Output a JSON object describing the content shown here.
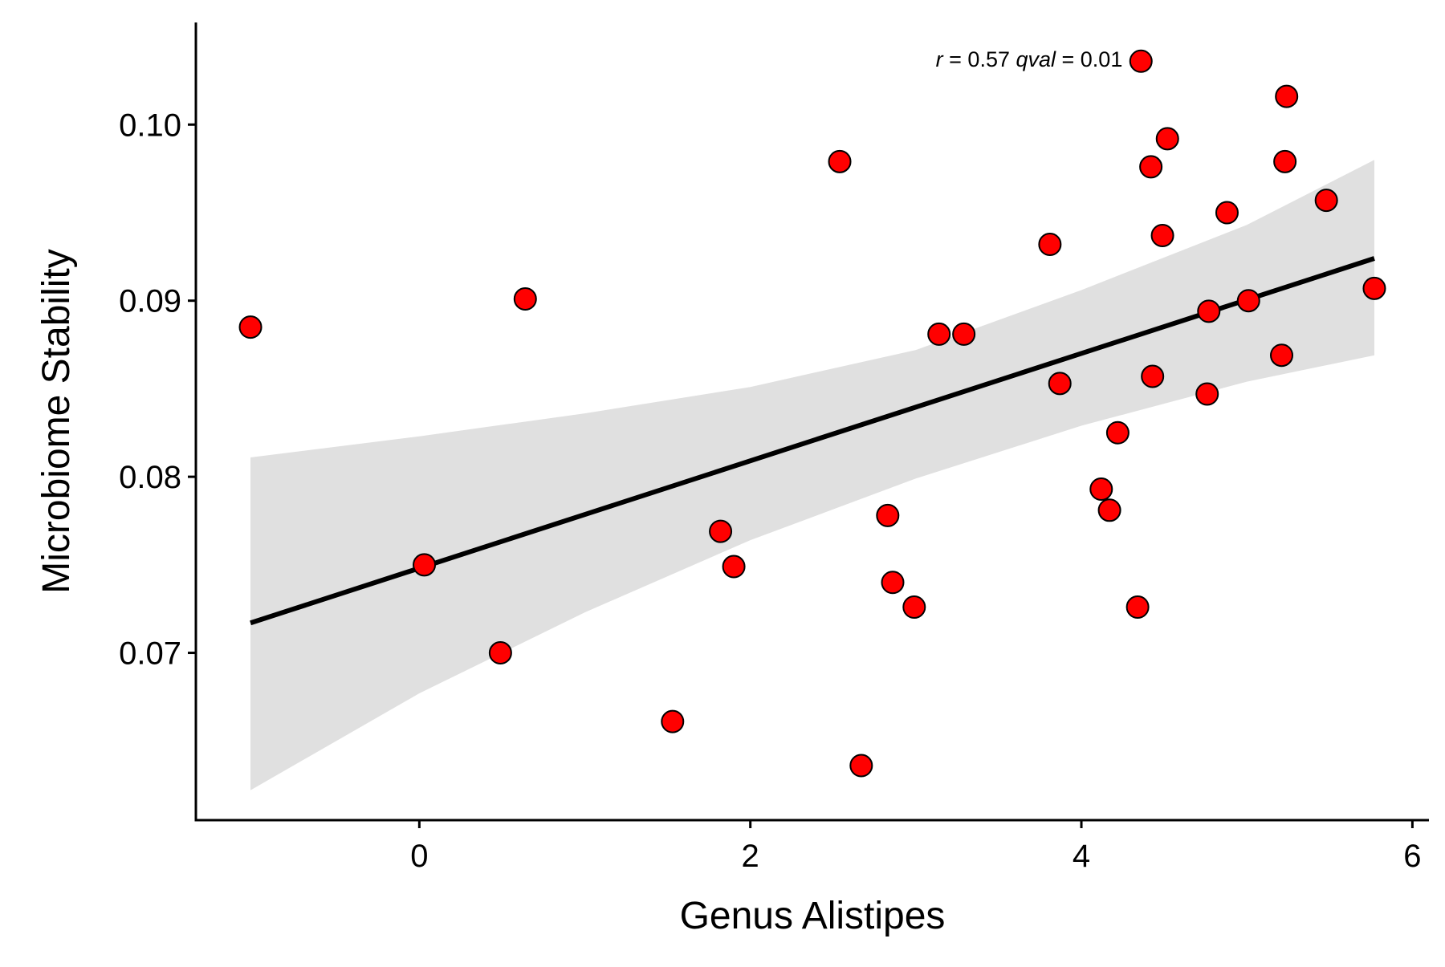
{
  "chart_data": {
    "type": "scatter",
    "title": "",
    "xlabel": "Genus Alistipes",
    "ylabel": "Microbiome Stability",
    "xlim": [
      -1.35,
      6.1
    ],
    "ylim": [
      0.0605,
      0.1058
    ],
    "x_ticks": [
      {
        "value": 0,
        "label": "0"
      },
      {
        "value": 2,
        "label": "2"
      },
      {
        "value": 4,
        "label": "4"
      },
      {
        "value": 6,
        "label": "6"
      }
    ],
    "y_ticks": [
      {
        "value": 0.07,
        "label": "0.07"
      },
      {
        "value": 0.08,
        "label": "0.08"
      },
      {
        "value": 0.09,
        "label": "0.09"
      },
      {
        "value": 0.1,
        "label": "0.10"
      }
    ],
    "grid": false,
    "legend": "none",
    "annotation": {
      "r_symbol": "r",
      "r_text": " = 0.57 ",
      "q_symbol": "qval",
      "q_text": " = 0.01"
    },
    "colors": {
      "point_fill": "#ff0000",
      "point_stroke": "#000000",
      "line": "#000000",
      "ribbon": "#e0e0e0"
    },
    "points": [
      {
        "x": -1.02,
        "y": 0.0885
      },
      {
        "x": 0.03,
        "y": 0.075
      },
      {
        "x": 0.49,
        "y": 0.07
      },
      {
        "x": 0.64,
        "y": 0.0901
      },
      {
        "x": 1.53,
        "y": 0.0661
      },
      {
        "x": 1.82,
        "y": 0.0769
      },
      {
        "x": 1.9,
        "y": 0.0749
      },
      {
        "x": 2.54,
        "y": 0.0979
      },
      {
        "x": 2.67,
        "y": 0.0636
      },
      {
        "x": 2.83,
        "y": 0.0778
      },
      {
        "x": 2.86,
        "y": 0.074
      },
      {
        "x": 2.99,
        "y": 0.0726
      },
      {
        "x": 3.14,
        "y": 0.0881
      },
      {
        "x": 3.29,
        "y": 0.0881
      },
      {
        "x": 3.81,
        "y": 0.0932
      },
      {
        "x": 3.87,
        "y": 0.0853
      },
      {
        "x": 4.12,
        "y": 0.0793
      },
      {
        "x": 4.17,
        "y": 0.0781
      },
      {
        "x": 4.22,
        "y": 0.0825
      },
      {
        "x": 4.34,
        "y": 0.0726
      },
      {
        "x": 4.36,
        "y": 0.1036
      },
      {
        "x": 4.42,
        "y": 0.0976
      },
      {
        "x": 4.43,
        "y": 0.0857
      },
      {
        "x": 4.49,
        "y": 0.0937
      },
      {
        "x": 4.52,
        "y": 0.0992
      },
      {
        "x": 4.76,
        "y": 0.0847
      },
      {
        "x": 4.77,
        "y": 0.0894
      },
      {
        "x": 4.88,
        "y": 0.095
      },
      {
        "x": 5.01,
        "y": 0.09
      },
      {
        "x": 5.21,
        "y": 0.0869
      },
      {
        "x": 5.23,
        "y": 0.0979
      },
      {
        "x": 5.24,
        "y": 0.1016
      },
      {
        "x": 5.48,
        "y": 0.0957
      },
      {
        "x": 5.77,
        "y": 0.0907
      }
    ],
    "fit_line": {
      "x": [
        -1.02,
        5.77
      ],
      "y": [
        0.0717,
        0.0924
      ]
    },
    "confidence_band": {
      "x": [
        -1.02,
        0.0,
        1.0,
        2.0,
        3.0,
        4.0,
        5.0,
        5.77
      ],
      "lower": [
        0.0622,
        0.0677,
        0.0723,
        0.0764,
        0.0799,
        0.0829,
        0.0854,
        0.0869
      ],
      "upper": [
        0.0811,
        0.0823,
        0.0836,
        0.0851,
        0.0872,
        0.0906,
        0.0943,
        0.098
      ]
    }
  }
}
